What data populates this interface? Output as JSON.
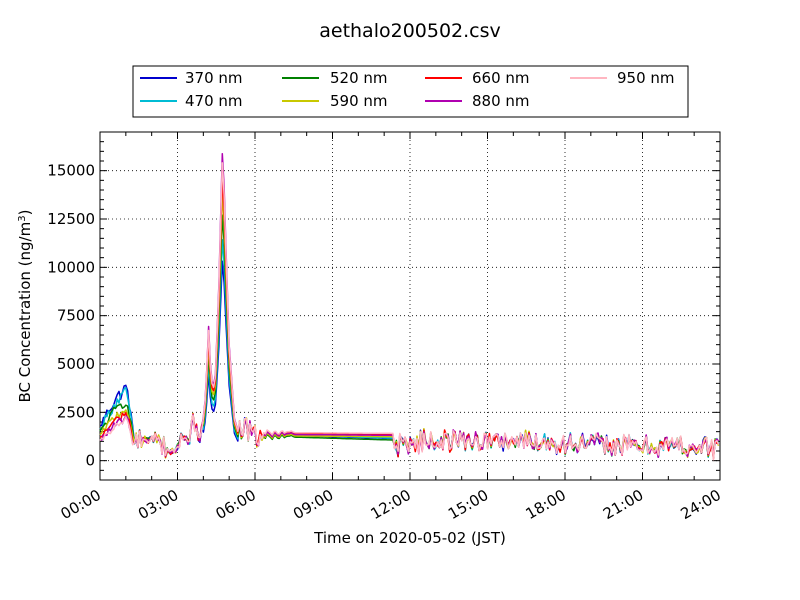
{
  "chart_data": {
    "type": "line",
    "title": "aethalo200502.csv",
    "xlabel": "Time on 2020-05-02 (JST)",
    "ylabel_main": "BC Concentration (ng/m",
    "ylabel_sup": "3",
    "ylabel_close": ")",
    "xlim": [
      "00:00",
      "24:00"
    ],
    "ylim": [
      -1000,
      17000
    ],
    "xticks": [
      "00:00",
      "03:00",
      "06:00",
      "09:00",
      "12:00",
      "15:00",
      "18:00",
      "21:00",
      "24:00"
    ],
    "yticks": [
      0,
      2500,
      5000,
      7500,
      10000,
      12500,
      15000
    ],
    "ytick_labels": [
      "0",
      "2500",
      "5000",
      "7500",
      "10000",
      "12500",
      "15000"
    ],
    "grid": true,
    "legend_position": "top-center",
    "series": [
      {
        "name": "370 nm",
        "color": "#0000cd",
        "scale": 0.65,
        "low_factor": 1.45,
        "mid_level": 1300
      },
      {
        "name": "470 nm",
        "color": "#00bcd4",
        "scale": 0.72,
        "low_factor": 1.35,
        "mid_level": 1320
      },
      {
        "name": "520 nm",
        "color": "#008000",
        "scale": 0.8,
        "low_factor": 1.2,
        "mid_level": 1220
      },
      {
        "name": "590 nm",
        "color": "#c8c800",
        "scale": 0.87,
        "low_factor": 1.05,
        "mid_level": 1280
      },
      {
        "name": "660 nm",
        "color": "#ff0000",
        "scale": 0.92,
        "low_factor": 0.95,
        "mid_level": 1400
      },
      {
        "name": "880 nm",
        "color": "#b000b0",
        "scale": 1.0,
        "low_factor": 0.85,
        "mid_level": 1350
      },
      {
        "name": "950 nm",
        "color": "#ffb6c1",
        "scale": 0.97,
        "low_factor": 0.8,
        "mid_level": 1450
      }
    ],
    "base_profile": [
      [
        0.0,
        1200
      ],
      [
        0.2,
        1600
      ],
      [
        0.4,
        1900
      ],
      [
        0.6,
        2200
      ],
      [
        0.8,
        2400
      ],
      [
        1.0,
        2600
      ],
      [
        1.1,
        2300
      ],
      [
        1.3,
        900
      ],
      [
        1.6,
        1100
      ],
      [
        1.9,
        800
      ],
      [
        2.2,
        1000
      ],
      [
        2.5,
        700
      ],
      [
        2.8,
        600
      ],
      [
        3.1,
        800
      ],
      [
        3.4,
        1200
      ],
      [
        3.7,
        2100
      ],
      [
        3.9,
        1000
      ],
      [
        4.1,
        3500
      ],
      [
        4.2,
        7000
      ],
      [
        4.3,
        4200
      ],
      [
        4.45,
        3800
      ],
      [
        4.6,
        9000
      ],
      [
        4.75,
        16600
      ],
      [
        4.85,
        12000
      ],
      [
        5.0,
        6000
      ],
      [
        5.2,
        2200
      ],
      [
        5.35,
        1500
      ],
      [
        5.6,
        1700
      ],
      [
        6.0,
        1200
      ],
      [
        6.5,
        1300
      ],
      [
        7.0,
        1450
      ],
      [
        7.5,
        1300
      ],
      [
        8.5,
        1350
      ],
      [
        9.5,
        1300
      ],
      [
        10.5,
        1300
      ],
      [
        11.4,
        1300
      ],
      [
        11.45,
        700
      ],
      [
        11.8,
        1000
      ],
      [
        12.2,
        900
      ],
      [
        12.8,
        1100
      ],
      [
        13.5,
        1000
      ],
      [
        14.2,
        1100
      ],
      [
        15.0,
        1000
      ],
      [
        16.0,
        1050
      ],
      [
        17.0,
        1000
      ],
      [
        18.0,
        900
      ],
      [
        19.0,
        850
      ],
      [
        20.0,
        800
      ],
      [
        21.0,
        750
      ],
      [
        22.0,
        800
      ],
      [
        23.0,
        700
      ],
      [
        24.0,
        650
      ]
    ]
  }
}
